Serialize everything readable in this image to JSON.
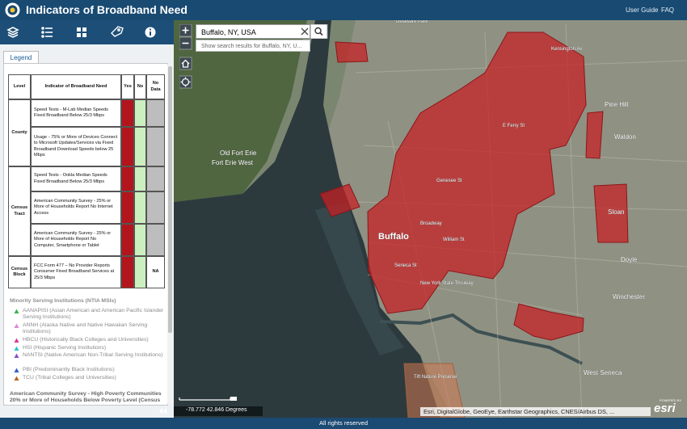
{
  "header": {
    "title": "Indicators of Broadband Need",
    "links": [
      "User Guide",
      "FAQ"
    ]
  },
  "legend": {
    "tab": "Legend",
    "table": {
      "columns": [
        "Level",
        "Indicator of Broadband Need",
        "Yes",
        "No",
        "No Data"
      ],
      "groups": [
        {
          "level": "County",
          "indicators": [
            "Speed Tests - M-Lab Median Speeds Fixed Broadband Below 25/3 Mbps",
            "Usage - 75% or More of Devices Connect to Microsoft Updates/Services via Fixed Broadband Download Speeds below 25 Mbps"
          ]
        },
        {
          "level": "Census Tract",
          "indicators": [
            "Speed Tests - Ookla Median Speeds Fixed Broadband Below 25/3 Mbps",
            "American Community Survey - 25% or More of Households Report No Internet Access",
            "American Community Survey - 25% or More of Households Report No Computer, Smartphone or Tablet"
          ]
        },
        {
          "level": "Census Block",
          "indicators": [
            "FCC Form 477 – No Provider Reports Consumer Fixed Broadband Services at 25/3 Mbps"
          ],
          "no_data": "NA"
        }
      ]
    },
    "msi": {
      "title": "Minority Serving Institutions (NTIA MSIs)",
      "items": [
        {
          "label": "AANAPISI (Asian American and American Pacific Islander Serving Institutions)",
          "color": "#3cb44b"
        },
        {
          "label": "ANNH (Alaska Native and Native Hawaiian Serving Institutions)",
          "color": "#d98cd9"
        },
        {
          "label": "HBCU (Historically Black Colleges and Universities)",
          "color": "#e0359a"
        },
        {
          "label": "HSI (Hispanic Serving Institutions)",
          "color": "#2ec4d6"
        },
        {
          "label": "NANTSI (Native American Non-Tribal Serving Institutions)",
          "color": "#8a4fc7"
        },
        {
          "label": "PBI (Predominantly Black Institutions)",
          "color": "#2f5fd0"
        },
        {
          "label": "TCU (Tribal Colleges and Universities)",
          "color": "#b5651d"
        }
      ]
    },
    "poverty_title": "American Community Survey - High Poverty Communities 20% or More of Households Below Poverty Level (Census"
  },
  "map": {
    "search": {
      "query": "Buffalo, NY, USA",
      "suggestion": "Show search results for Buffalo, NY, U..."
    },
    "labels": [
      "Buffalo",
      "Pine Hill",
      "Waldon",
      "Sloan",
      "Doyle",
      "Winchester",
      "West Seneca",
      "Old Fort Erie",
      "Fort Erie West",
      "Tift Nature Preserve",
      "Kensington Av",
      "E Ferry St",
      "Genesee St",
      "Broadway",
      "William St",
      "Seneca St",
      "New York State Thruway",
      "Delaware Park"
    ],
    "coordinates": "-78.772 42.846 Degrees",
    "attribution": "Esri, DigitalGlobe, GeoEye, Earthstar Geographics, CNES/Airbus DS, ...",
    "logo_caption": "POWERED BY",
    "logo": "esri"
  },
  "footer": "All rights reserved"
}
